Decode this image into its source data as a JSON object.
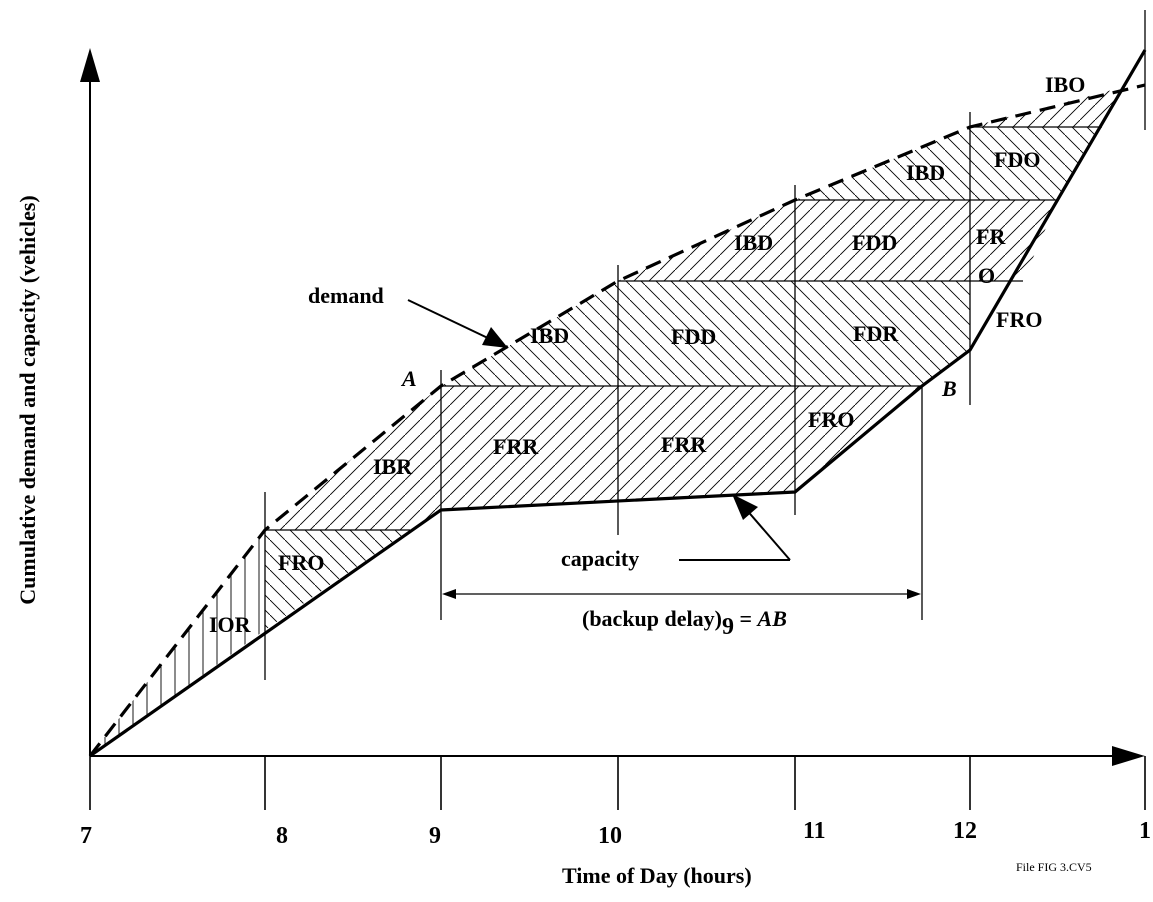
{
  "axes": {
    "x_label": "Time of Day (hours)",
    "y_label": "Cumulative demand and capacity (vehicles)",
    "x_ticks": [
      "7",
      "8",
      "9",
      "10",
      "11",
      "12",
      "1"
    ]
  },
  "curves": {
    "demand_label": "demand",
    "capacity_label": "capacity"
  },
  "points": {
    "a": "A",
    "b": "B"
  },
  "backup": {
    "label_prefix": "(backup delay)",
    "label_sub": "9",
    "label_suffix": " = ",
    "label_ab": "AB"
  },
  "regions": {
    "ior": "IOR",
    "fro_8": "FRO",
    "ibr": "IBR",
    "frr_9": "FRR",
    "frr_10": "FRR",
    "fro_11": "FRO",
    "ibd_9": "IBD",
    "fdd_10": "FDD",
    "fdr_11": "FDR",
    "ibd_10": "IBD",
    "fdd_11": "FDD",
    "fr_top": "FR",
    "fr_bottom": "O",
    "fro_12": "FRO",
    "ibd_11": "IBD",
    "fdo_12": "FDO",
    "ibo": "IBO"
  },
  "file_note": "File FIG 3.CV5"
}
